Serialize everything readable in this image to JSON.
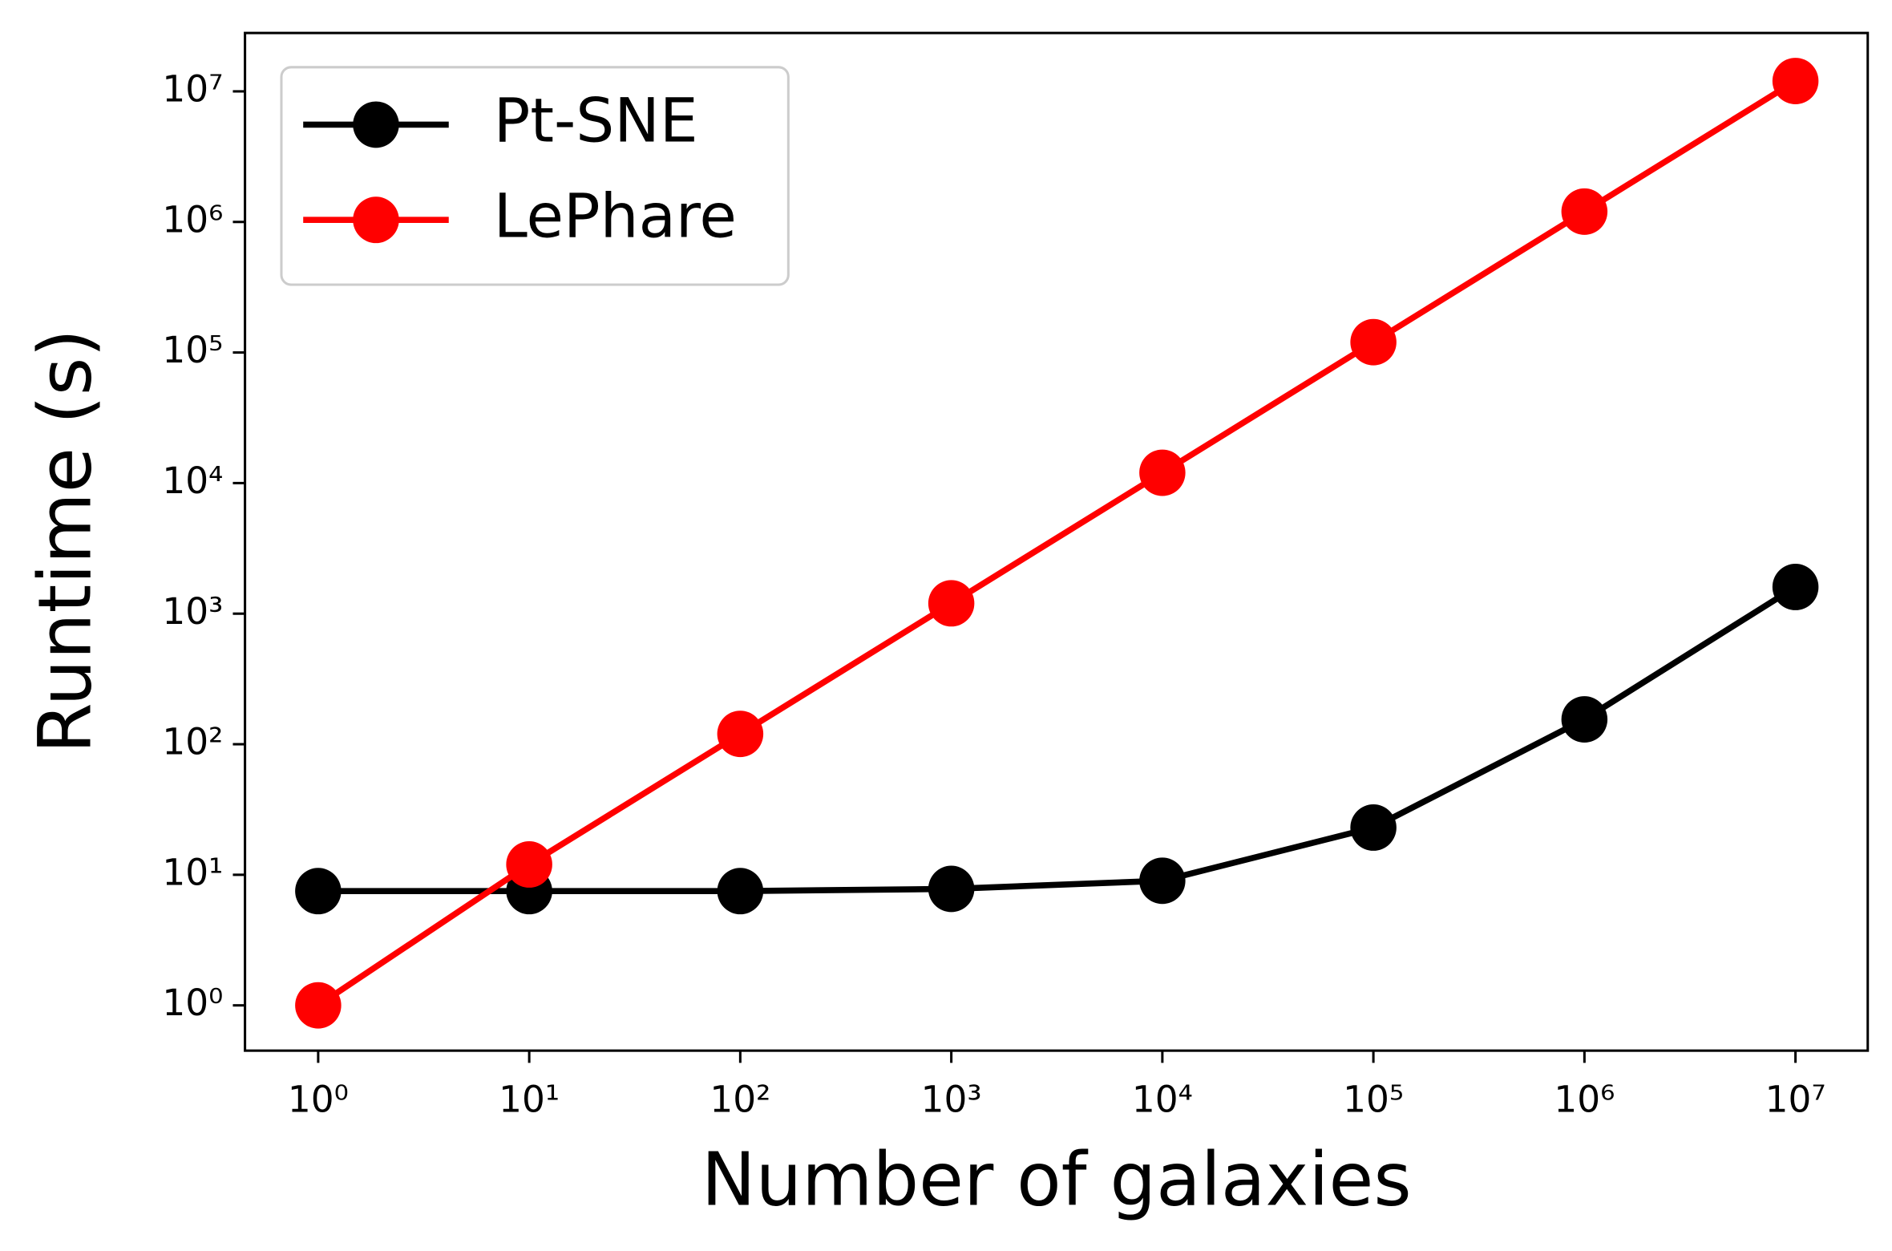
{
  "chart_data": {
    "type": "line",
    "xlabel": "Number of galaxies",
    "ylabel": "Runtime (s)",
    "x": [
      1,
      10,
      100,
      1000,
      10000,
      100000,
      1000000,
      10000000
    ],
    "series": [
      {
        "name": "Pt-SNE",
        "color": "#000000",
        "values": [
          7.5,
          7.5,
          7.5,
          7.8,
          9,
          23,
          155,
          1600
        ]
      },
      {
        "name": "LePhare",
        "color": "#ff0000",
        "values": [
          1,
          12,
          120,
          1200,
          12000,
          120000,
          1200000,
          12000000
        ]
      }
    ],
    "xscale": "log",
    "yscale": "log",
    "xlim": [
      0.45,
      22000000
    ],
    "ylim": [
      0.45,
      28000000
    ],
    "xticks": [
      {
        "value": 1,
        "label": "10⁰"
      },
      {
        "value": 10,
        "label": "10¹"
      },
      {
        "value": 100,
        "label": "10²"
      },
      {
        "value": 1000,
        "label": "10³"
      },
      {
        "value": 10000,
        "label": "10⁴"
      },
      {
        "value": 100000,
        "label": "10⁵"
      },
      {
        "value": 1000000,
        "label": "10⁶"
      },
      {
        "value": 10000000,
        "label": "10⁷"
      }
    ],
    "yticks": [
      {
        "value": 1,
        "label": "10⁰"
      },
      {
        "value": 10,
        "label": "10¹"
      },
      {
        "value": 100,
        "label": "10²"
      },
      {
        "value": 1000,
        "label": "10³"
      },
      {
        "value": 10000,
        "label": "10⁴"
      },
      {
        "value": 100000,
        "label": "10⁵"
      },
      {
        "value": 1000000,
        "label": "10⁶"
      },
      {
        "value": 10000000,
        "label": "10⁷"
      }
    ],
    "grid": false,
    "legend": "upper left"
  }
}
